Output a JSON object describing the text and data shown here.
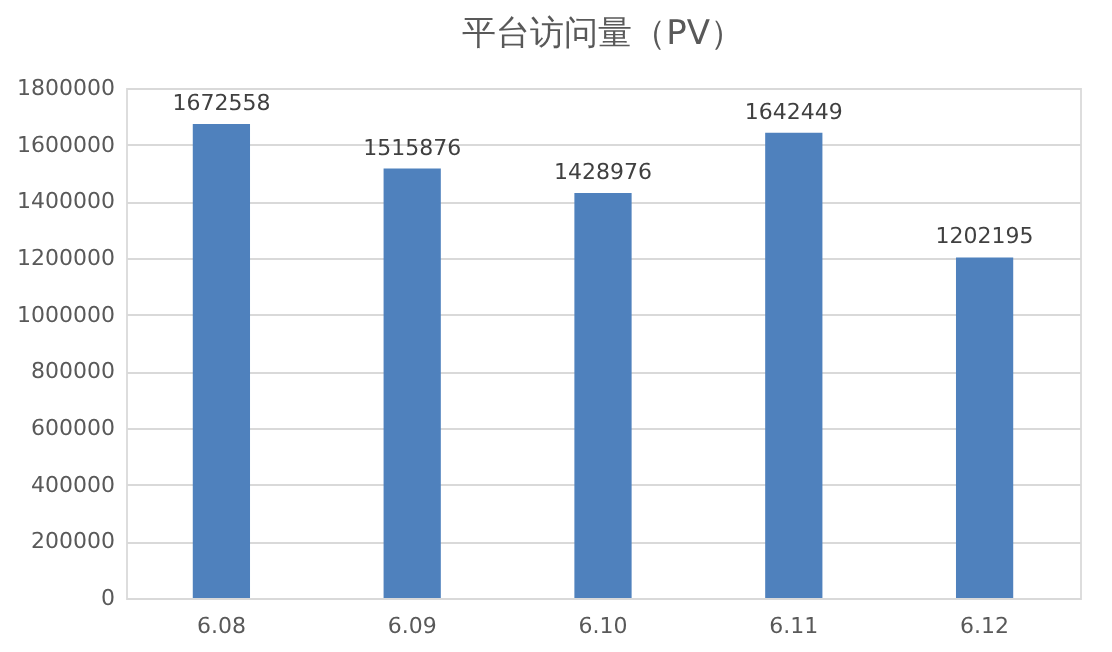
{
  "chart_data": {
    "type": "bar",
    "title": "平台访问量（PV）",
    "categories": [
      "6.08",
      "6.09",
      "6.10",
      "6.11",
      "6.12"
    ],
    "values": [
      1672558,
      1515876,
      1428976,
      1642449,
      1202195
    ],
    "color": "#4f81bd",
    "ylim": [
      0,
      1800000
    ],
    "yticks": [
      0,
      200000,
      400000,
      600000,
      800000,
      1000000,
      1200000,
      1400000,
      1600000,
      1800000
    ],
    "grid": "y",
    "data_labels": true
  }
}
